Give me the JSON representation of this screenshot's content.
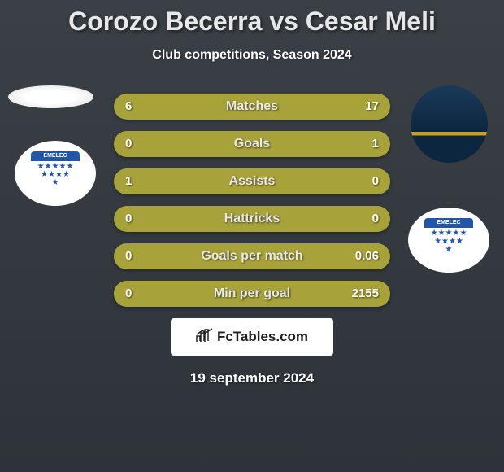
{
  "title": "Corozo Becerra vs Cesar Meli",
  "subtitle": "Club competitions, Season 2024",
  "stats": [
    {
      "label": "Matches",
      "left_value": "6",
      "right_value": "17",
      "left_pct": 26,
      "right_pct": 74
    },
    {
      "label": "Goals",
      "left_value": "0",
      "right_value": "1",
      "left_pct": 0,
      "right_pct": 100
    },
    {
      "label": "Assists",
      "left_value": "1",
      "right_value": "0",
      "left_pct": 100,
      "right_pct": 0
    },
    {
      "label": "Hattricks",
      "left_value": "0",
      "right_value": "0",
      "left_pct": 50,
      "right_pct": 50
    },
    {
      "label": "Goals per match",
      "left_value": "0",
      "right_value": "0.06",
      "left_pct": 0,
      "right_pct": 100
    },
    {
      "label": "Min per goal",
      "left_value": "0",
      "right_value": "2155",
      "left_pct": 0,
      "right_pct": 100
    }
  ],
  "brand": {
    "icon": "⚡",
    "text": "FcTables.com"
  },
  "footer_date": "19 september 2024",
  "club_label": "EMELEC",
  "colors": {
    "background_top": "#3a4046",
    "background_bottom": "#2d3338",
    "bar_base": "#8a8532",
    "bar_fill": "#a8a23a",
    "title_color": "#e8e8e8",
    "text_color": "#ffffff",
    "club_blue": "#2456a8"
  }
}
